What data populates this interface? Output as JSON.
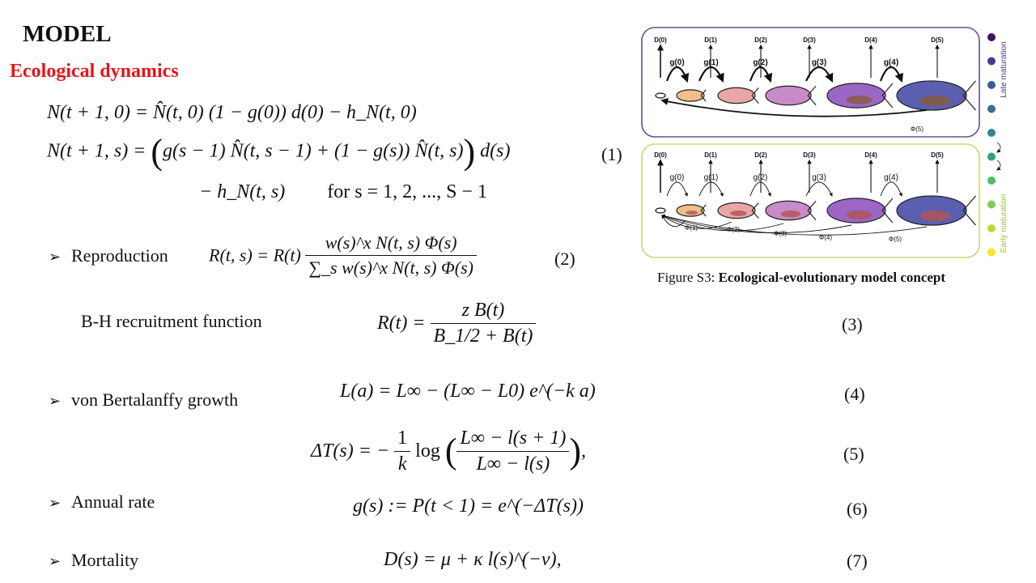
{
  "slide": {
    "title": "MODEL",
    "subtitle": "Ecological dynamics"
  },
  "equations": {
    "eq1": {
      "line1": "N(t + 1, 0) = N̂(t, 0) (1 − g(0)) d(0) − h_N(t, 0)",
      "line2_lhs": "N(t + 1, s) =",
      "line2_body": "g(s − 1) N̂(t, s − 1) + (1 − g(s)) N̂(t, s)",
      "line2_tail": "d(s)",
      "line3": "− h_N(t, s)",
      "line3_cond": "for s = 1, 2, ..., S − 1",
      "number": "(1)"
    },
    "eq2": {
      "label": "Reproduction",
      "lhs": "R(t, s) = R(t)",
      "numerator": "w(s)^x N(t, s) Φ(s)",
      "denominator": "∑_s w(s)^x N(t, s) Φ(s)",
      "number": "(2)"
    },
    "eq3": {
      "label": "B-H recruitment function",
      "lhs": "R(t) =",
      "numerator": "z B(t)",
      "denominator": "B_1/2 + B(t)",
      "number": "(3)"
    },
    "eq4": {
      "label": "von Bertalanffy growth",
      "body": "L(a) = L∞ − (L∞ − L0) e^(−k a)",
      "number": "(4)"
    },
    "eq5": {
      "lhs": "ΔT(s) = −",
      "coef_num": "1",
      "coef_den": "k",
      "log": "log",
      "numerator": "L∞ − l(s + 1)",
      "denominator": "L∞ − l(s)",
      "tail": ",",
      "number": "(5)"
    },
    "eq6": {
      "label": "Annual rate",
      "body": "g(s) := P(t < 1) = e^(−ΔT(s))",
      "number": "(6)"
    },
    "eq7": {
      "label": "Mortality",
      "body": "D(s) = μ + κ l(s)^(−ν),",
      "number": "(7)"
    }
  },
  "figure": {
    "caption_prefix": "Figure S3:",
    "caption_title": "Ecological-evolutionary model concept",
    "late_label": "Late maturation",
    "early_label": "Early maturation",
    "top_panel": {
      "d_labels": [
        "D(0)",
        "D(1)",
        "D(2)",
        "D(3)",
        "D(4)",
        "D(5)"
      ],
      "g_labels": [
        "g(0)",
        "g(1)",
        "g(2)",
        "g(3)",
        "g(4)"
      ],
      "phi_labels": [
        "Φ(5)"
      ]
    },
    "bottom_panel": {
      "d_labels": [
        "D(0)",
        "D(1)",
        "D(2)",
        "D(3)",
        "D(4)",
        "D(5)"
      ],
      "g_labels": [
        "g(0)",
        "g(1)",
        "g(2)",
        "g(3)",
        "g(4)"
      ],
      "phi_labels": [
        "Φ(1)",
        "Φ(2)",
        "Φ(3)",
        "Φ(4)",
        "Φ(5)"
      ]
    },
    "colors": {
      "top_border": "#6b4f8a",
      "bottom_border": "#c9d77a",
      "fish_fills": [
        "#f0c08a",
        "#e8a7a6",
        "#c78bc8",
        "#9b66c4",
        "#5a5fb0"
      ],
      "dots": [
        "#45145a",
        "#473c8a",
        "#3d5a9a",
        "#37708f",
        "#2b8a8a",
        "#27a37f",
        "#4dbb6a",
        "#7dcf52",
        "#b4dd35",
        "#f5e61f"
      ]
    }
  }
}
